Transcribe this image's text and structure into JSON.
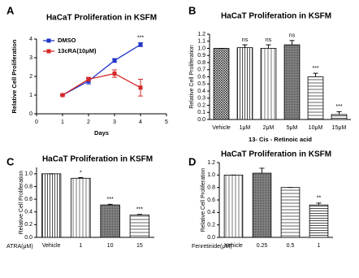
{
  "chart_data": [
    {
      "type": "line",
      "panel_label": "A",
      "title": "HaCaT Proliferation in KSFM",
      "x_label": "Days",
      "y_label": "Relative Cell Proliferation",
      "x": [
        1,
        2,
        3,
        4
      ],
      "xlim": [
        0,
        5
      ],
      "xticks": [
        0,
        1,
        2,
        3,
        4,
        5
      ],
      "ylim": [
        0,
        4
      ],
      "yticks": [
        0,
        1,
        2,
        3,
        4
      ],
      "series": [
        {
          "name": "DMSO",
          "color": "#1f35c8",
          "values": [
            1,
            1.75,
            2.85,
            3.7
          ],
          "errors": [
            0.03,
            0.15,
            0.1,
            0.1
          ]
        },
        {
          "name": "13cRA(10μM)",
          "color": "#d62728",
          "values": [
            1,
            1.85,
            2.15,
            1.4
          ],
          "errors": [
            0.03,
            0.1,
            0.2,
            0.45
          ]
        }
      ],
      "annotations": [
        {
          "x": 4,
          "text": "***"
        }
      ]
    },
    {
      "type": "bar",
      "panel_label": "B",
      "title": "HaCaT Proliferation in KSFM",
      "x_label": "13- Cis - Retinoic acid",
      "y_label": "Relative Cell Proliferation",
      "categories": [
        "Vehicle",
        "1μM",
        "2μM",
        "5μM",
        "10μM",
        "15μM"
      ],
      "values": [
        1.0,
        1.01,
        1.0,
        1.05,
        0.6,
        0.07
      ],
      "errors": [
        0,
        0.04,
        0.05,
        0.06,
        0.05,
        0.04
      ],
      "annotations": [
        null,
        "ns",
        "ns",
        "ns",
        "***",
        "***"
      ],
      "ylim": [
        0,
        1.2
      ],
      "yticks": [
        {
          "value": 0,
          "label": "0.0"
        },
        0.1,
        0.2,
        0.3,
        0.4,
        0.5,
        0.6,
        0.7,
        0.8,
        0.9,
        {
          "value": 1,
          "label": "1.0"
        },
        1.1,
        1.2
      ]
    },
    {
      "type": "bar",
      "panel_label": "C",
      "title": "HaCaT Proliferation in KSFM",
      "x_label": "ATRA(μM)",
      "y_label": "Relative Cell Proliferation",
      "categories": [
        "Vehicle",
        "1",
        "10",
        "15"
      ],
      "values": [
        1.0,
        0.93,
        0.51,
        0.35
      ],
      "errors": [
        0,
        0.01,
        0.01,
        0.01
      ],
      "annotations": [
        null,
        "*",
        "***",
        "***"
      ],
      "ylim": [
        0,
        1.1
      ],
      "yticks": [
        {
          "value": 0,
          "label": "0.0"
        },
        0.2,
        0.4,
        0.6,
        0.8,
        {
          "value": 1,
          "label": "1.0"
        }
      ]
    },
    {
      "type": "bar",
      "panel_label": "D",
      "title": "HaCaT Proliferation in KSFM",
      "x_label": "Fenretinide(μM)",
      "y_label": "Relative Cell Proliferation",
      "categories": [
        "Vehicle",
        "0.25",
        "0.5",
        "1"
      ],
      "values": [
        1.0,
        1.03,
        0.8,
        0.52
      ],
      "errors": [
        0,
        0.08,
        0,
        0.03
      ],
      "annotations": [
        null,
        null,
        null,
        "**"
      ],
      "ylim": [
        0,
        1.2
      ],
      "yticks": [
        {
          "value": 0,
          "label": "0.0"
        },
        0.2,
        0.4,
        0.6,
        0.8,
        {
          "value": 1,
          "label": "1.0"
        },
        1.2
      ]
    }
  ]
}
